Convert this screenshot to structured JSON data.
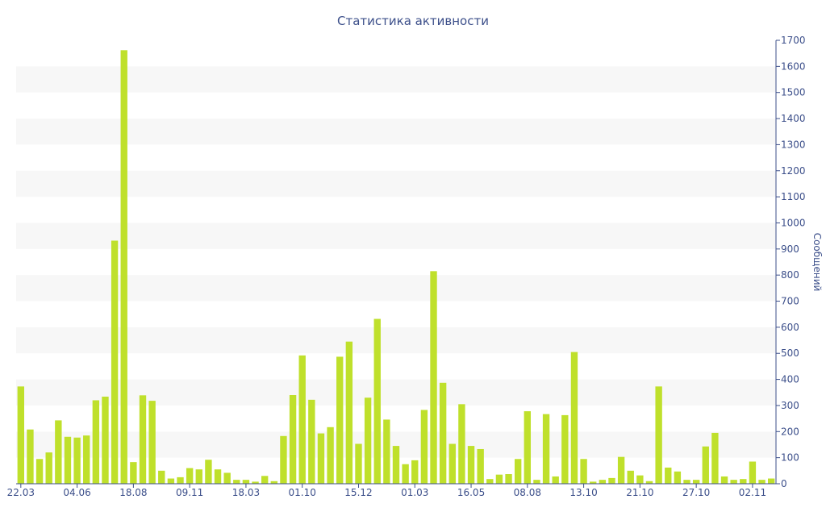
{
  "chart_data": {
    "type": "bar",
    "title": "Статистика активности",
    "xlabel": "",
    "ylabel": "Сообщений",
    "ylim": [
      0,
      1700
    ],
    "y_axis_side": "right",
    "yticks": [
      0,
      100,
      200,
      300,
      400,
      500,
      600,
      700,
      800,
      900,
      1000,
      1100,
      1200,
      1300,
      1400,
      1500,
      1600,
      1700
    ],
    "grid": "alternating horizontal bands",
    "xtick_labels": [
      {
        "index": 0,
        "label": "22.03"
      },
      {
        "index": 6,
        "label": "04.06"
      },
      {
        "index": 12,
        "label": "18.08"
      },
      {
        "index": 18,
        "label": "09.11"
      },
      {
        "index": 24,
        "label": "18.03"
      },
      {
        "index": 30,
        "label": "01.10"
      },
      {
        "index": 36,
        "label": "15.12"
      },
      {
        "index": 42,
        "label": "01.03"
      },
      {
        "index": 48,
        "label": "16.05"
      },
      {
        "index": 54,
        "label": "08.08"
      },
      {
        "index": 60,
        "label": "13.10"
      },
      {
        "index": 66,
        "label": "21.10"
      },
      {
        "index": 72,
        "label": "27.10"
      },
      {
        "index": 78,
        "label": "02.11"
      }
    ],
    "values": [
      373,
      208,
      95,
      120,
      243,
      180,
      177,
      185,
      320,
      334,
      932,
      1662,
      83,
      339,
      318,
      50,
      20,
      25,
      60,
      55,
      92,
      55,
      42,
      15,
      15,
      8,
      30,
      10,
      183,
      340,
      492,
      322,
      193,
      217,
      487,
      545,
      153,
      330,
      632,
      246,
      145,
      75,
      90,
      283,
      815,
      387,
      153,
      305,
      145,
      133,
      18,
      35,
      37,
      95,
      278,
      15,
      267,
      28,
      263,
      505,
      95,
      8,
      15,
      22,
      103,
      50,
      32,
      10,
      373,
      62,
      47,
      15,
      15,
      143,
      195,
      28,
      15,
      18,
      85,
      15,
      20
    ],
    "colors": {
      "bar": "#bfe02b",
      "band": "#f7f7f7",
      "axis": "#3c4f8a",
      "text": "#3c4f8a"
    }
  }
}
